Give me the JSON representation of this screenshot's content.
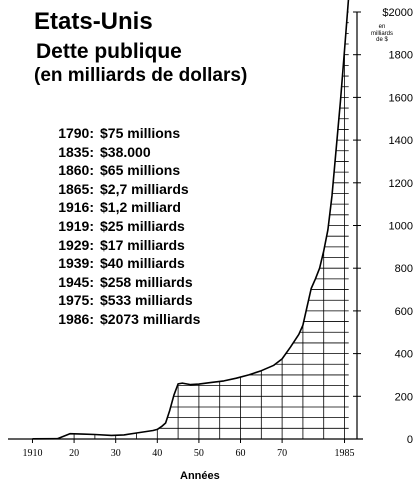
{
  "title_line1": "Etats-Unis",
  "title_line2": "Dette publique",
  "title_line3": "(en milliards de dollars)",
  "annotations": [
    {
      "year": "1790:",
      "value": "$75 millions"
    },
    {
      "year": "1835:",
      "value": "$38.000"
    },
    {
      "year": "1860:",
      "value": "$65 millions"
    },
    {
      "year": "1865:",
      "value": "$2,7 milliards"
    },
    {
      "year": "1916:",
      "value": "$1,2 milliard"
    },
    {
      "year": "1919:",
      "value": "$25 milliards"
    },
    {
      "year": "1929:",
      "value": "$17 milliards"
    },
    {
      "year": "1939:",
      "value": "$40 milliards"
    },
    {
      "year": "1945:",
      "value": "$258 milliards"
    },
    {
      "year": "1975:",
      "value": "$533 milliards"
    },
    {
      "year": "1986:",
      "value": "$2073 milliards"
    }
  ],
  "y_unit_note": [
    "en",
    "milliards",
    "de $"
  ],
  "colors": {
    "line": "#000000",
    "grid": "#000000",
    "background": "#ffffff"
  },
  "chart_data": {
    "type": "area",
    "title": "Etats-Unis Dette publique (en milliards de dollars)",
    "xlabel": "Années",
    "ylabel": "",
    "x_tick_labels": [
      "1910",
      "20",
      "30",
      "40",
      "50",
      "60",
      "70",
      "1985"
    ],
    "x_tick_years": [
      1910,
      1920,
      1930,
      1940,
      1950,
      1960,
      1970,
      1985
    ],
    "y_tick_labels": [
      "0",
      "200",
      "400",
      "600",
      "800",
      "1000",
      "1200",
      "1400",
      "1600",
      "1800",
      "$2000"
    ],
    "y_tick_values": [
      0,
      200,
      400,
      600,
      800,
      1000,
      1200,
      1400,
      1600,
      1800,
      2000
    ],
    "xlim": [
      1907,
      1988
    ],
    "ylim": [
      0,
      2000
    ],
    "grid": true,
    "grid_under_curve_only": true,
    "y_axis_side": "right",
    "series": [
      {
        "x": [
          1910,
          1916,
          1919,
          1922,
          1925,
          1929,
          1932,
          1935,
          1939,
          1940,
          1941,
          1942,
          1943,
          1944,
          1945,
          1946,
          1948,
          1950,
          1953,
          1956,
          1959,
          1962,
          1965,
          1968,
          1970,
          1972,
          1973,
          1974,
          1975,
          1976,
          1977,
          1978,
          1979,
          1980,
          1981,
          1982,
          1983,
          1984,
          1985,
          1986
        ],
        "y": [
          1,
          1.2,
          25,
          23,
          21,
          17,
          19,
          28,
          40,
          45,
          58,
          75,
          135,
          205,
          258,
          262,
          255,
          257,
          265,
          272,
          285,
          300,
          320,
          345,
          375,
          430,
          460,
          490,
          533,
          620,
          705,
          750,
          800,
          880,
          980,
          1140,
          1360,
          1580,
          1820,
          2073
        ]
      }
    ]
  }
}
